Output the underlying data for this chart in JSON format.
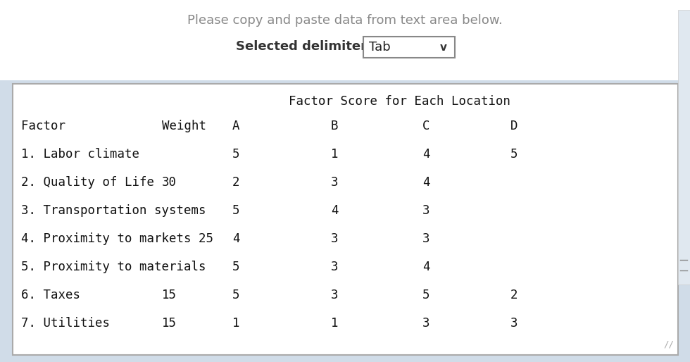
{
  "title_line1": "Please copy and paste data from text area below.",
  "title_line2": "Selected delimiter:",
  "delimiter_value": "Tab",
  "outer_bg_color": "#d0dce8",
  "top_bg_color": "#f0f4f8",
  "table_bg": "#ffffff",
  "table_border_color": "#aaaaaa",
  "header_subtitle": "Factor Score for Each Location",
  "font_family": "monospace",
  "body_fontsize": 12.5,
  "top_text_color": "#888888",
  "label_bold_color": "#333333",
  "table_text_color": "#111111",
  "rows_display": [
    [
      "1. Labor climate",
      "",
      "5",
      "1",
      "4",
      "5"
    ],
    [
      "2. Quality of Life",
      "30",
      "2",
      "3",
      "4",
      ""
    ],
    [
      "3. Transportation systems",
      "",
      "5",
      "4",
      "3",
      ""
    ],
    [
      "4. Proximity to markets 25",
      "",
      "4",
      "3",
      "3",
      ""
    ],
    [
      "5. Proximity to materials",
      "",
      "5",
      "3",
      "4",
      ""
    ],
    [
      "6. Taxes",
      "15",
      "5",
      "3",
      "5",
      "2"
    ],
    [
      "7. Utilities",
      "15",
      "1",
      "1",
      "3",
      "3"
    ]
  ]
}
